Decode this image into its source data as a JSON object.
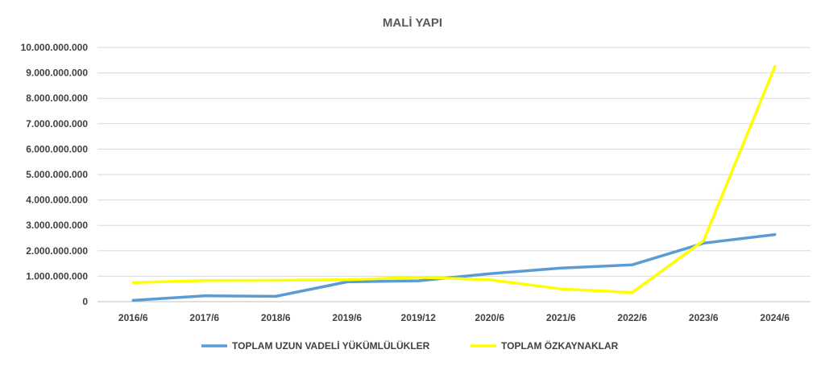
{
  "chart_data": {
    "type": "line",
    "title": "MALİ YAPI",
    "xlabel": "",
    "ylabel": "",
    "categories": [
      "2016/6",
      "2017/6",
      "2018/6",
      "2019/6",
      "2019/12",
      "2020/6",
      "2021/6",
      "2022/6",
      "2023/6",
      "2024/6"
    ],
    "ylim": [
      0,
      10000000000
    ],
    "yticks": [
      {
        "value": 0,
        "label": "0"
      },
      {
        "value": 1000000000,
        "label": "1.000.000.000"
      },
      {
        "value": 2000000000,
        "label": "2.000.000.000"
      },
      {
        "value": 3000000000,
        "label": "3.000.000.000"
      },
      {
        "value": 4000000000,
        "label": "4.000.000.000"
      },
      {
        "value": 5000000000,
        "label": "5.000.000.000"
      },
      {
        "value": 6000000000,
        "label": "6.000.000.000"
      },
      {
        "value": 7000000000,
        "label": "7.000.000.000"
      },
      {
        "value": 8000000000,
        "label": "8.000.000.000"
      },
      {
        "value": 9000000000,
        "label": "9.000.000.000"
      },
      {
        "value": 10000000000,
        "label": "10.000.000.000"
      }
    ],
    "grid": true,
    "legend_position": "bottom",
    "series": [
      {
        "name": "TOPLAM UZUN VADELİ YÜKÜMLÜLÜKLER",
        "color": "#5b9bd5",
        "values": [
          50000000,
          230000000,
          210000000,
          780000000,
          820000000,
          1100000000,
          1320000000,
          1450000000,
          2300000000,
          2640000000
        ]
      },
      {
        "name": "TOPLAM ÖZKAYNAKLAR",
        "color": "#ffff00",
        "values": [
          750000000,
          830000000,
          840000000,
          860000000,
          960000000,
          860000000,
          500000000,
          360000000,
          2400000000,
          9250000000
        ]
      }
    ]
  }
}
